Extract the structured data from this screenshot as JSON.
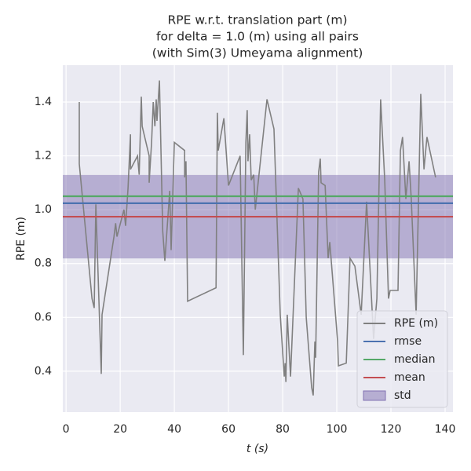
{
  "chart_data": {
    "type": "line",
    "title": [
      "RPE w.r.t. translation part (m)",
      "for delta = 1.0 (m) using all pairs",
      "(with Sim(3) Umeyama alignment)"
    ],
    "xlabel": "t (s)",
    "ylabel": "RPE (m)",
    "xlim": [
      -1.2,
      142.9
    ],
    "ylim": [
      0.248,
      1.537
    ],
    "xticks": [
      0,
      20,
      40,
      60,
      80,
      100,
      120,
      140
    ],
    "yticks": [
      0.4,
      0.6,
      0.8,
      {
        "value": 1,
        "label": "1.0"
      },
      1.2,
      1.4
    ],
    "grid": true,
    "legend": "lower right",
    "series": [
      {
        "name": "RPE (m)",
        "color": "#808080",
        "x": [
          4.9,
          4.9,
          9.6,
          10.4,
          11.0,
          13.0,
          13.3,
          17.7,
          18.3,
          18.8,
          21.4,
          22.0,
          22.9,
          23.8,
          23.8,
          26.4,
          27.0,
          27.8,
          28.1,
          30.7,
          30.7,
          31.6,
          32.2,
          32.8,
          33.3,
          33.6,
          34.5,
          35.7,
          36.5,
          38.3,
          38.8,
          40.0,
          43.8,
          43.8,
          44.3,
          44.9,
          55.4,
          55.9,
          56.2,
          58.3,
          60.0,
          64.3,
          65.5,
          66.4,
          66.9,
          67.2,
          67.8,
          68.4,
          69.3,
          69.9,
          74.2,
          76.8,
          79.1,
          80.6,
          80.9,
          81.2,
          81.7,
          82.9,
          85.8,
          87.5,
          88.7,
          90.7,
          91.3,
          91.9,
          92.2,
          93.3,
          93.9,
          94.2,
          95.7,
          96.8,
          97.4,
          100.3,
          100.6,
          103.5,
          104.9,
          106.7,
          109.0,
          111.0,
          113.6,
          114.8,
          116.2,
          117.7,
          119.1,
          119.7,
          122.6,
          123.5,
          124.3,
          125.5,
          126.7,
          127.5,
          129.3,
          131.0,
          132.2,
          133.3,
          136.5
        ],
        "values": [
          1.4,
          1.17,
          0.67,
          0.635,
          1.02,
          0.39,
          0.61,
          0.9,
          0.95,
          0.9,
          1.0,
          0.94,
          1.08,
          1.28,
          1.15,
          1.2,
          1.13,
          1.42,
          1.31,
          1.2,
          1.1,
          1.25,
          1.4,
          1.31,
          1.41,
          1.33,
          1.48,
          0.92,
          0.81,
          1.07,
          0.85,
          1.25,
          1.22,
          1.12,
          1.18,
          0.66,
          0.71,
          1.36,
          1.22,
          1.34,
          1.09,
          1.2,
          0.46,
          1.25,
          1.37,
          1.18,
          1.28,
          1.11,
          1.13,
          1.0,
          1.41,
          1.3,
          0.61,
          0.38,
          0.43,
          0.36,
          0.61,
          0.38,
          1.08,
          1.04,
          0.6,
          0.34,
          0.31,
          0.51,
          0.45,
          1.14,
          1.19,
          1.1,
          1.09,
          0.82,
          0.88,
          0.51,
          0.42,
          0.43,
          0.82,
          0.79,
          0.61,
          1.03,
          0.52,
          0.67,
          1.41,
          1.11,
          0.67,
          0.7,
          0.7,
          1.22,
          1.27,
          1.04,
          1.18,
          1.04,
          0.61,
          1.43,
          1.15,
          1.27,
          1.12
        ]
      }
    ],
    "hlines": [
      {
        "name": "rmse",
        "color": "#4c72b0",
        "value": 1.024
      },
      {
        "name": "median",
        "color": "#55a868",
        "value": 1.05
      },
      {
        "name": "mean",
        "color": "#c44e52",
        "value": 0.974
      }
    ],
    "band": {
      "name": "std",
      "color": "#8172b2",
      "value": 0.155
    }
  }
}
